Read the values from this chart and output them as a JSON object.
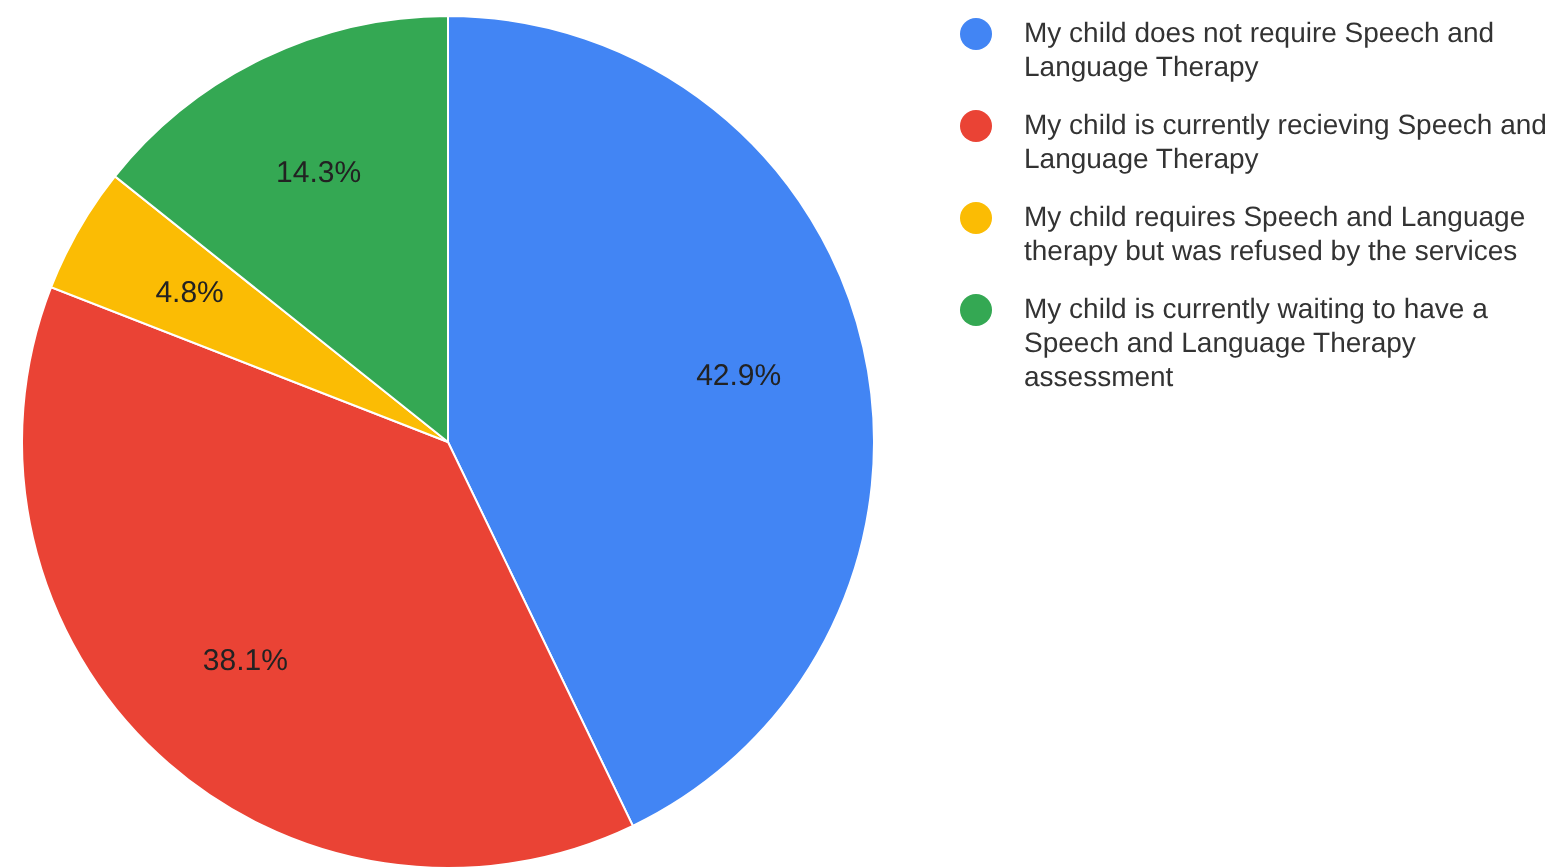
{
  "chart_data": {
    "type": "pie",
    "categories": [
      "My child does not require Speech and Language Therapy",
      "My child is currently recieving Speech and Language Therapy",
      "My child requires Speech and Language therapy but was refused by the services",
      "My child is currently waiting to have a Speech and Language Therapy assessment"
    ],
    "values": [
      42.9,
      38.1,
      4.8,
      14.3
    ],
    "colors": [
      "#4285f4",
      "#ea4335",
      "#fbbc04",
      "#34a853"
    ],
    "value_labels": [
      "42.9%",
      "38.1%",
      "4.8%",
      "14.3%"
    ],
    "legend": "top right"
  }
}
